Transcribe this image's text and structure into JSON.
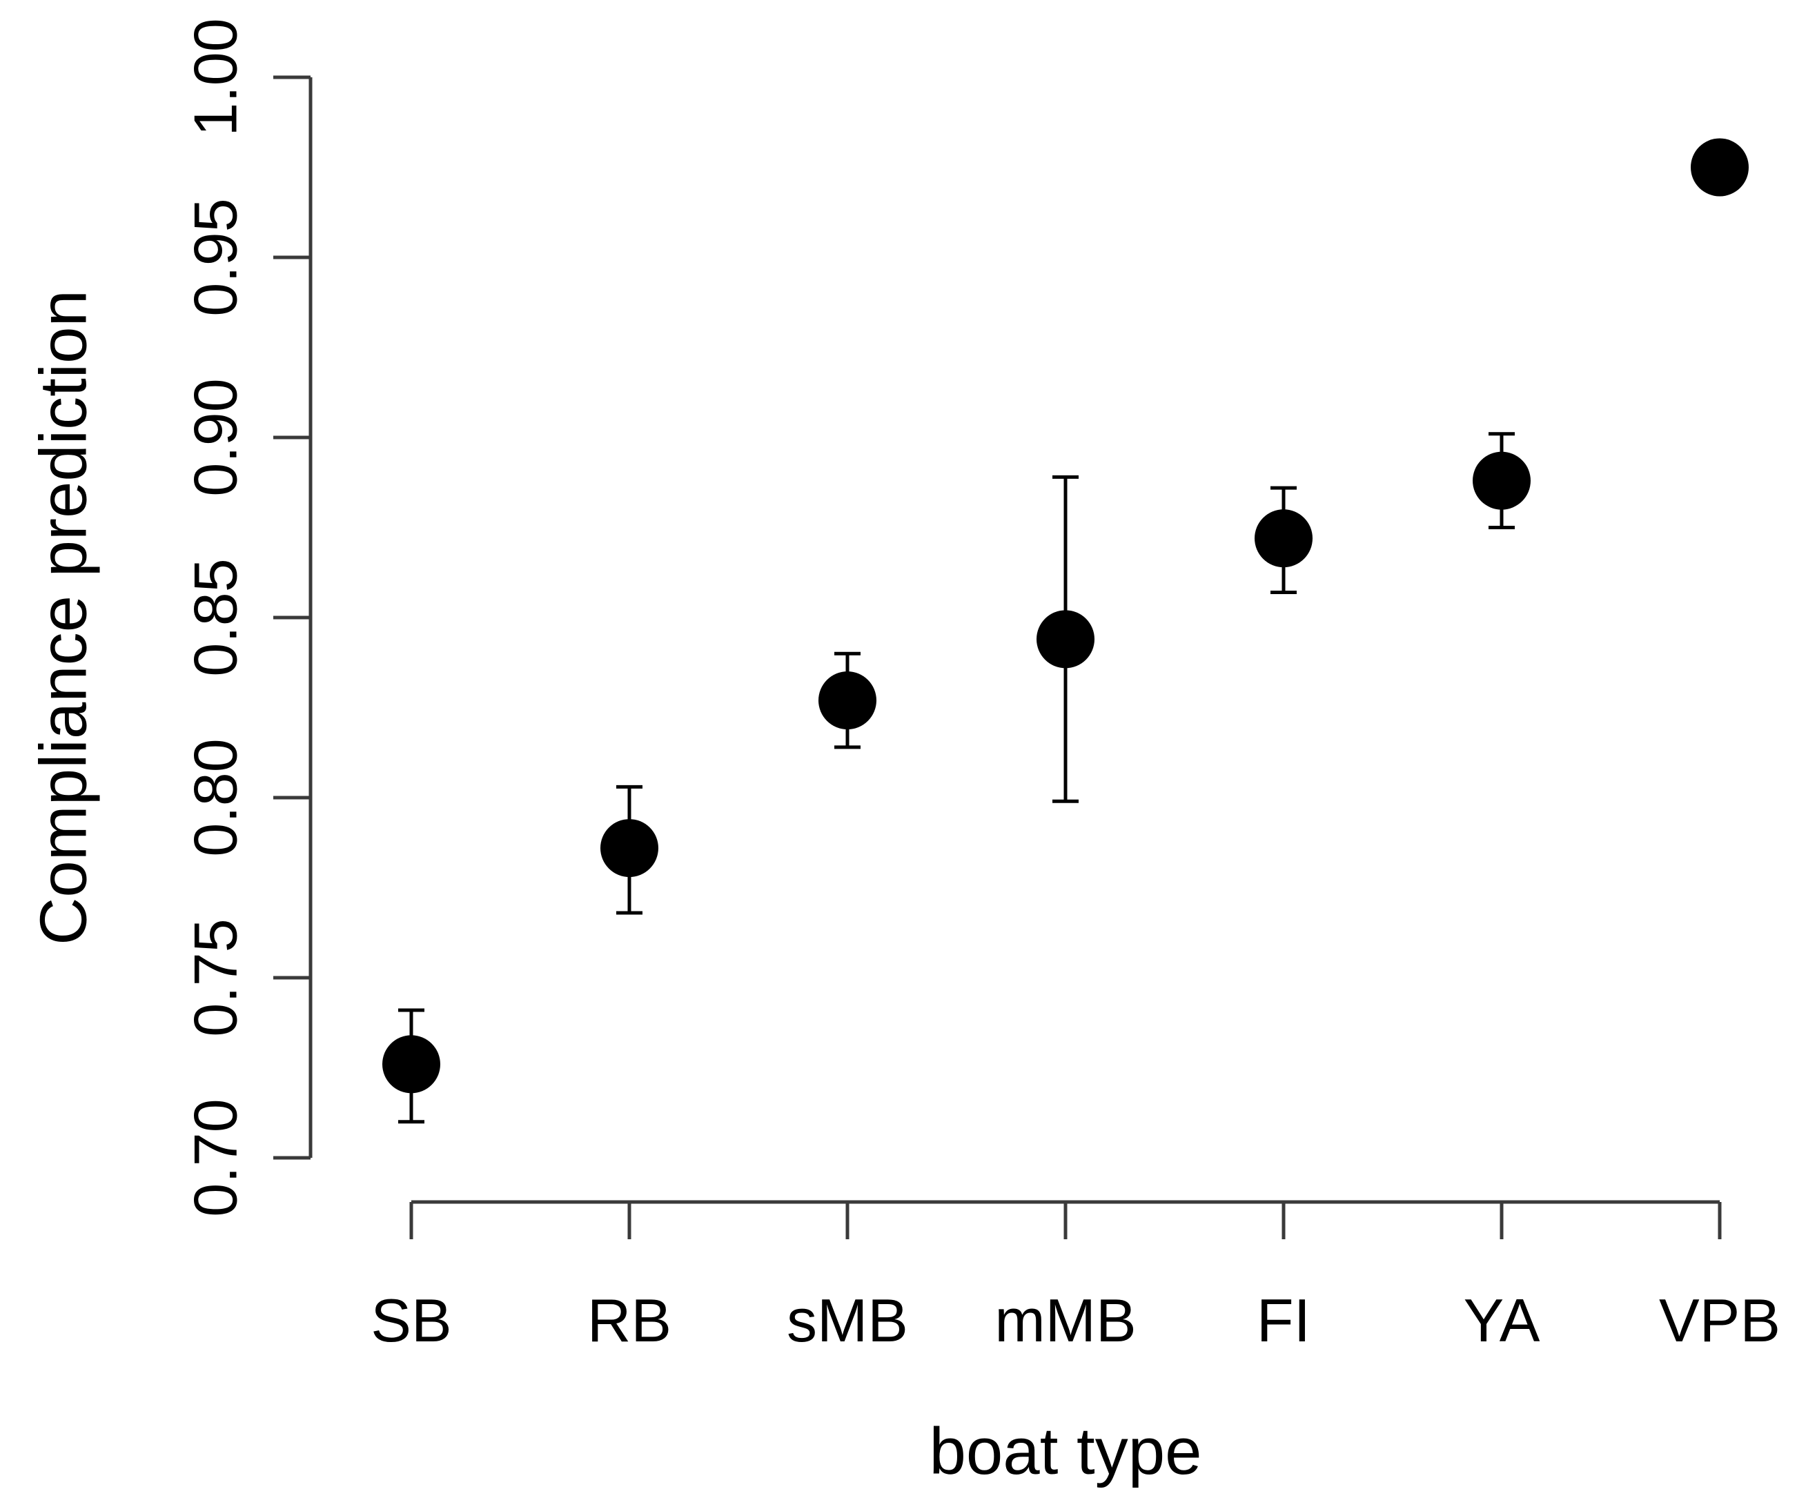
{
  "chart_data": {
    "type": "scatter",
    "title": "",
    "xlabel": "boat type",
    "ylabel": "Compliance prediction",
    "categories": [
      "SB",
      "RB",
      "sMB",
      "mMB",
      "FI",
      "YA",
      "VPB"
    ],
    "series": [
      {
        "values": [
          0.726,
          0.786,
          0.827,
          0.844,
          0.872,
          0.888,
          0.975
        ],
        "lower": [
          0.71,
          0.768,
          0.814,
          0.799,
          0.857,
          0.875,
          null
        ],
        "upper": [
          0.741,
          0.803,
          0.84,
          0.889,
          0.886,
          0.901,
          null
        ]
      }
    ],
    "ylim": [
      0.7,
      1.0
    ],
    "yticks": [
      "0.70",
      "0.75",
      "0.80",
      "0.85",
      "0.90",
      "0.95",
      "1.00"
    ],
    "grid": false,
    "colors": {
      "point": "#000000",
      "axis": "#3a3a3a"
    }
  }
}
